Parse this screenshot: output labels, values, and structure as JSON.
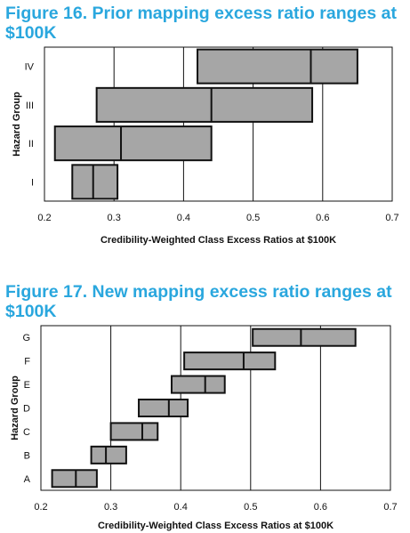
{
  "colors": {
    "title": "#2aa7de",
    "box_fill": "#a6a6a6",
    "box_stroke": "#111111",
    "grid": "#111111"
  },
  "chart_data": [
    {
      "type": "range-box",
      "title": "Figure 16. Prior mapping excess ratio ranges at $100K",
      "xlabel": "Credibility-Weighted Class Excess Ratios at $100K",
      "ylabel": "Hazard Group",
      "xlim": [
        0.2,
        0.7
      ],
      "xticks": [
        "0.2",
        "0.3",
        "0.4",
        "0.5",
        "0.6",
        "0.7"
      ],
      "grid": "vertical",
      "categories": [
        "I",
        "II",
        "III",
        "IV"
      ],
      "ranges": [
        {
          "min": 0.24,
          "mid": 0.27,
          "max": 0.305
        },
        {
          "min": 0.215,
          "mid": 0.31,
          "max": 0.44
        },
        {
          "min": 0.275,
          "mid": 0.44,
          "max": 0.585
        },
        {
          "min": 0.42,
          "mid": 0.583,
          "max": 0.65
        }
      ]
    },
    {
      "type": "range-box",
      "title": "Figure 17. New mapping excess ratio ranges at $100K",
      "xlabel": "Credibility-Weighted Class Excess Ratios at $100K",
      "ylabel": "Hazard Group",
      "xlim": [
        0.2,
        0.7
      ],
      "xticks": [
        "0.2",
        "0.3",
        "0.4",
        "0.5",
        "0.6",
        "0.7"
      ],
      "grid": "vertical",
      "categories": [
        "A",
        "B",
        "C",
        "D",
        "E",
        "F",
        "G"
      ],
      "ranges": [
        {
          "min": 0.216,
          "mid": 0.25,
          "max": 0.28
        },
        {
          "min": 0.272,
          "mid": 0.293,
          "max": 0.322
        },
        {
          "min": 0.3,
          "mid": 0.345,
          "max": 0.367
        },
        {
          "min": 0.34,
          "mid": 0.383,
          "max": 0.41
        },
        {
          "min": 0.387,
          "mid": 0.435,
          "max": 0.463
        },
        {
          "min": 0.405,
          "mid": 0.49,
          "max": 0.535
        },
        {
          "min": 0.503,
          "mid": 0.572,
          "max": 0.65
        }
      ]
    }
  ]
}
